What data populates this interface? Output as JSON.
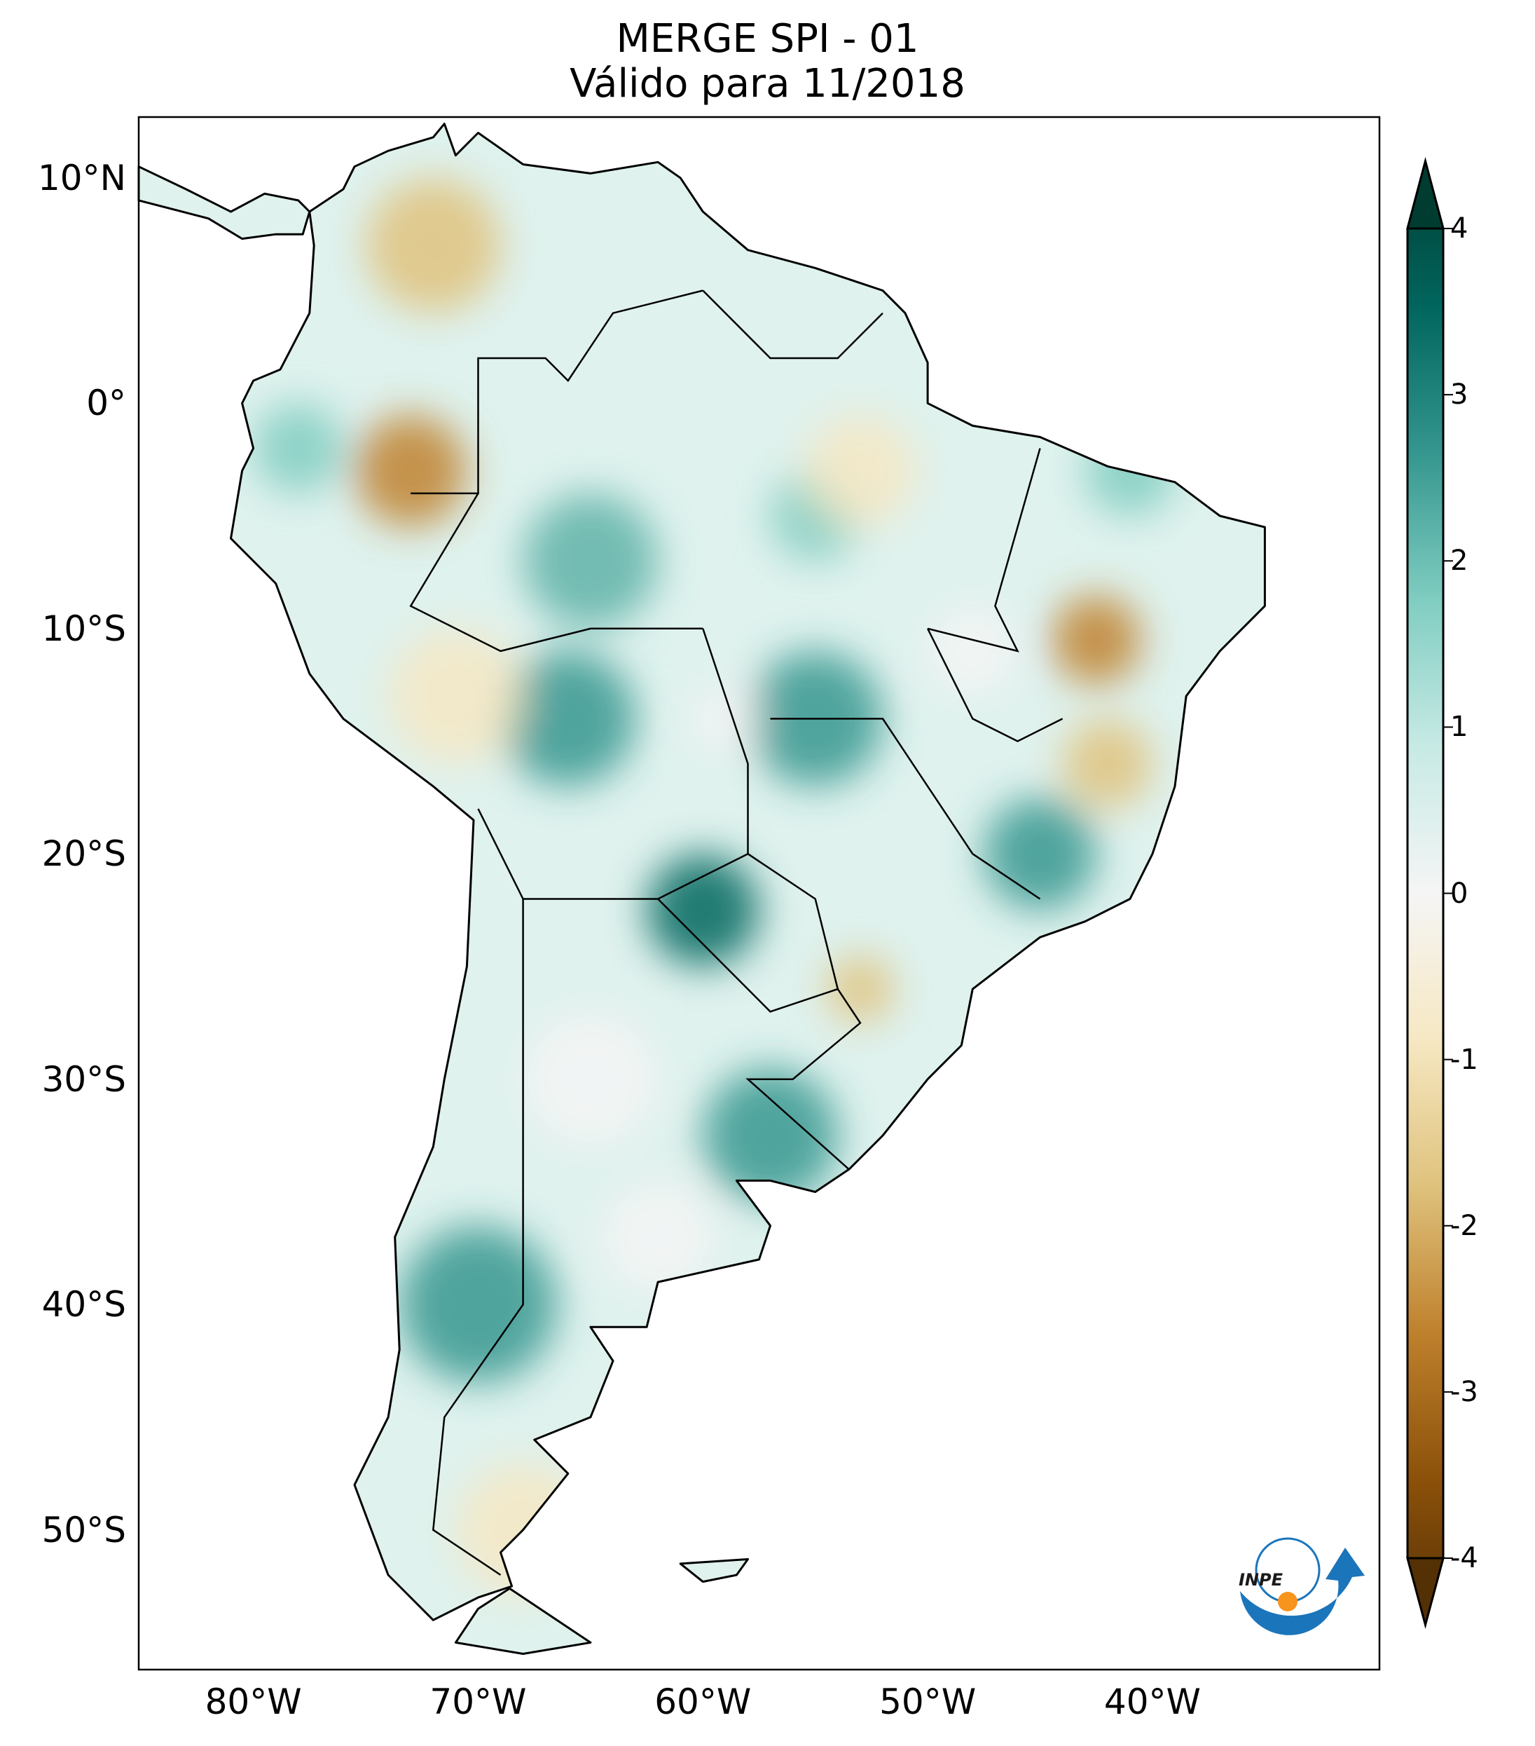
{
  "title": {
    "line1": "MERGE   SPI - 01",
    "line2": "Válido para 11/2018"
  },
  "axes": {
    "lat_labels": [
      "10°N",
      "0°",
      "10°S",
      "20°S",
      "30°S",
      "40°S",
      "50°S"
    ],
    "lat_values": [
      10,
      0,
      -10,
      -20,
      -30,
      -40,
      -50
    ],
    "lon_labels": [
      "80°W",
      "70°W",
      "60°W",
      "50°W",
      "40°W"
    ],
    "lon_values": [
      -80,
      -70,
      -60,
      -50,
      -40
    ],
    "lon_range": [
      -85.1,
      -29.9
    ],
    "lat_range": [
      -56.2,
      12.7
    ]
  },
  "colorbar": {
    "ticks": [
      "4",
      "3",
      "2",
      "1",
      "0",
      "-1",
      "-2",
      "-3",
      "-4"
    ],
    "tick_values": [
      4,
      3,
      2,
      1,
      0,
      -1,
      -2,
      -3,
      -4
    ],
    "range": [
      -4,
      4
    ],
    "extend": "both",
    "colors": [
      "#543005",
      "#8c510a",
      "#bf812d",
      "#dfc27d",
      "#f6e8c3",
      "#f5f5f5",
      "#c7eae5",
      "#80cdc1",
      "#35978f",
      "#01665e",
      "#003c30"
    ]
  },
  "logo": {
    "text": "INPE"
  }
}
